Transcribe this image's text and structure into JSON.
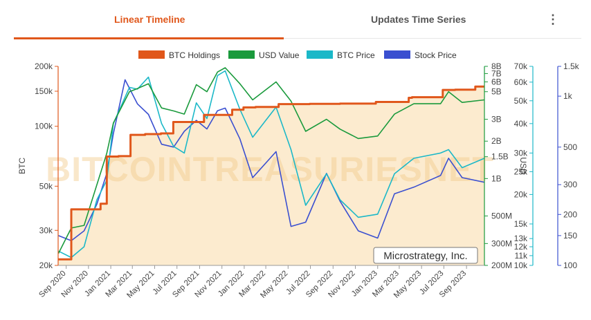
{
  "tabs": {
    "active": "Linear Timeline",
    "other": "Updates Time Series",
    "menu_icon": "kebab-menu-icon"
  },
  "colors": {
    "btc_holdings": "#e0571b",
    "usd_value": "#1a9a3c",
    "btc_price": "#1bb8c8",
    "stock_price": "#3a4fd0",
    "fill": "#fcebcf"
  },
  "watermark": "BITCOINTREASURIESNET",
  "company_label": "Microstrategy, Inc.",
  "chart_data": {
    "type": "line",
    "legend_position": "top",
    "x_ticks": [
      "Sep 2020",
      "Nov 2020",
      "Jan 2021",
      "Mar 2021",
      "May 2021",
      "Jul 2021",
      "Sep 2021",
      "Nov 2021",
      "Jan 2022",
      "Mar 2022",
      "May 2022",
      "Jul 2022",
      "Sep 2022",
      "Nov 2022",
      "Jan 2023",
      "Mar 2023",
      "May 2023",
      "Jul 2023",
      "Sep 2023"
    ],
    "axes": {
      "btc": {
        "label": "BTC",
        "scale": "log",
        "range": [
          20000,
          200000
        ],
        "ticks": [
          {
            "v": 20000,
            "t": "20k"
          },
          {
            "v": 30000,
            "t": "30k"
          },
          {
            "v": 50000,
            "t": "50k"
          },
          {
            "v": 100000,
            "t": "100k"
          },
          {
            "v": 150000,
            "t": "150k"
          },
          {
            "v": 200000,
            "t": "200k"
          }
        ]
      },
      "usd_value": {
        "label": "",
        "scale": "log",
        "range": [
          200000000,
          8000000000
        ],
        "ticks": [
          {
            "v": 200000000,
            "t": "200M"
          },
          {
            "v": 300000000,
            "t": "300M"
          },
          {
            "v": 500000000,
            "t": "500M"
          },
          {
            "v": 1000000000,
            "t": "1B"
          },
          {
            "v": 1500000000,
            "t": "1.5B"
          },
          {
            "v": 2000000000,
            "t": "2B"
          },
          {
            "v": 3000000000,
            "t": "3B"
          },
          {
            "v": 5000000000,
            "t": "5B"
          },
          {
            "v": 6000000000,
            "t": "6B"
          },
          {
            "v": 7000000000,
            "t": "7B"
          },
          {
            "v": 8000000000,
            "t": "8B"
          }
        ]
      },
      "btc_price": {
        "label": "USD",
        "scale": "log",
        "range": [
          10000,
          70000
        ],
        "ticks": [
          {
            "v": 10000,
            "t": "10k"
          },
          {
            "v": 11000,
            "t": "11k"
          },
          {
            "v": 12000,
            "t": "12k"
          },
          {
            "v": 13000,
            "t": "13k"
          },
          {
            "v": 15000,
            "t": "15k"
          },
          {
            "v": 20000,
            "t": "20k"
          },
          {
            "v": 25000,
            "t": "25k"
          },
          {
            "v": 30000,
            "t": "30k"
          },
          {
            "v": 40000,
            "t": "40k"
          },
          {
            "v": 50000,
            "t": "50k"
          },
          {
            "v": 60000,
            "t": "60k"
          },
          {
            "v": 70000,
            "t": "70k"
          }
        ]
      },
      "stock_price": {
        "label": "",
        "scale": "log",
        "range": [
          100,
          1500
        ],
        "ticks": [
          {
            "v": 100,
            "t": "100"
          },
          {
            "v": 150,
            "t": "150"
          },
          {
            "v": 200,
            "t": "200"
          },
          {
            "v": 300,
            "t": "300"
          },
          {
            "v": 500,
            "t": "500"
          },
          {
            "v": 1000,
            "t": "1k"
          },
          {
            "v": 1500,
            "t": "1.5k"
          }
        ]
      }
    },
    "x_range": [
      "2020-08-10",
      "2023-10-20"
    ],
    "series": [
      {
        "name": "BTC Holdings",
        "key": "btc",
        "points": [
          [
            "2020-08-11",
            21454
          ],
          [
            "2020-09-15",
            38250
          ],
          [
            "2020-12-04",
            40824
          ],
          [
            "2020-12-21",
            70470
          ],
          [
            "2021-01-22",
            70784
          ],
          [
            "2021-02-24",
            90531
          ],
          [
            "2021-04-05",
            91326
          ],
          [
            "2021-05-18",
            92079
          ],
          [
            "2021-06-21",
            105085
          ],
          [
            "2021-09-13",
            114042
          ],
          [
            "2021-11-29",
            121044
          ],
          [
            "2021-12-30",
            124391
          ],
          [
            "2022-02-01",
            125051
          ],
          [
            "2022-04-05",
            129218
          ],
          [
            "2022-06-29",
            129699
          ],
          [
            "2022-09-20",
            130000
          ],
          [
            "2022-12-27",
            132500
          ],
          [
            "2023-03-27",
            138955
          ],
          [
            "2023-04-05",
            140000
          ],
          [
            "2023-06-28",
            152333
          ],
          [
            "2023-08-01",
            152800
          ],
          [
            "2023-09-25",
            158245
          ],
          [
            "2023-10-20",
            158400
          ]
        ]
      },
      {
        "name": "USD Value",
        "key": "usd_value",
        "points": [
          [
            "2020-08-11",
            250000000
          ],
          [
            "2020-09-15",
            400000000
          ],
          [
            "2020-10-20",
            420000000
          ],
          [
            "2020-12-21",
            1600000000
          ],
          [
            "2021-01-08",
            2800000000
          ],
          [
            "2021-02-21",
            5000000000
          ],
          [
            "2021-03-15",
            5300000000
          ],
          [
            "2021-04-14",
            5800000000
          ],
          [
            "2021-05-20",
            3700000000
          ],
          [
            "2021-06-22",
            3500000000
          ],
          [
            "2021-07-21",
            3300000000
          ],
          [
            "2021-08-23",
            5700000000
          ],
          [
            "2021-09-21",
            5000000000
          ],
          [
            "2021-10-20",
            7200000000
          ],
          [
            "2021-11-10",
            7800000000
          ],
          [
            "2021-12-20",
            5800000000
          ],
          [
            "2022-01-24",
            4300000000
          ],
          [
            "2022-03-29",
            6000000000
          ],
          [
            "2022-05-09",
            4200000000
          ],
          [
            "2022-06-18",
            2400000000
          ],
          [
            "2022-08-14",
            3000000000
          ],
          [
            "2022-09-20",
            2500000000
          ],
          [
            "2022-11-09",
            2100000000
          ],
          [
            "2023-01-01",
            2200000000
          ],
          [
            "2023-02-16",
            3300000000
          ],
          [
            "2023-04-10",
            4000000000
          ],
          [
            "2023-06-22",
            4000000000
          ],
          [
            "2023-07-14",
            5000000000
          ],
          [
            "2023-08-20",
            4100000000
          ],
          [
            "2023-10-20",
            4300000000
          ]
        ]
      },
      {
        "name": "BTC Price",
        "key": "btc_price",
        "points": [
          [
            "2020-08-11",
            11500
          ],
          [
            "2020-09-15",
            10800
          ],
          [
            "2020-10-20",
            12000
          ],
          [
            "2020-11-24",
            19000
          ],
          [
            "2020-12-21",
            23000
          ],
          [
            "2021-01-08",
            40000
          ],
          [
            "2021-02-21",
            57000
          ],
          [
            "2021-03-15",
            56000
          ],
          [
            "2021-04-14",
            63000
          ],
          [
            "2021-05-20",
            40000
          ],
          [
            "2021-06-22",
            32000
          ],
          [
            "2021-07-21",
            30000
          ],
          [
            "2021-08-23",
            49000
          ],
          [
            "2021-09-21",
            42000
          ],
          [
            "2021-10-20",
            64000
          ],
          [
            "2021-11-10",
            67000
          ],
          [
            "2021-12-20",
            46000
          ],
          [
            "2022-01-24",
            35000
          ],
          [
            "2022-03-29",
            47000
          ],
          [
            "2022-05-09",
            31000
          ],
          [
            "2022-06-18",
            18000
          ],
          [
            "2022-08-14",
            24500
          ],
          [
            "2022-09-20",
            19000
          ],
          [
            "2022-11-09",
            16000
          ],
          [
            "2023-01-01",
            16500
          ],
          [
            "2023-02-16",
            24500
          ],
          [
            "2023-04-10",
            28500
          ],
          [
            "2023-06-22",
            30000
          ],
          [
            "2023-07-14",
            31000
          ],
          [
            "2023-08-20",
            26000
          ],
          [
            "2023-10-20",
            28500
          ]
        ]
      },
      {
        "name": "Stock Price",
        "key": "stock_price",
        "points": [
          [
            "2020-08-11",
            150
          ],
          [
            "2020-09-15",
            140
          ],
          [
            "2020-10-20",
            160
          ],
          [
            "2020-11-24",
            230
          ],
          [
            "2020-12-21",
            350
          ],
          [
            "2021-01-08",
            600
          ],
          [
            "2021-02-09",
            1250
          ],
          [
            "2021-03-15",
            900
          ],
          [
            "2021-04-14",
            780
          ],
          [
            "2021-05-20",
            520
          ],
          [
            "2021-06-22",
            500
          ],
          [
            "2021-07-21",
            620
          ],
          [
            "2021-08-23",
            720
          ],
          [
            "2021-09-21",
            640
          ],
          [
            "2021-10-20",
            820
          ],
          [
            "2021-11-10",
            850
          ],
          [
            "2021-12-20",
            560
          ],
          [
            "2022-01-24",
            330
          ],
          [
            "2022-03-29",
            470
          ],
          [
            "2022-05-09",
            170
          ],
          [
            "2022-06-18",
            180
          ],
          [
            "2022-08-14",
            350
          ],
          [
            "2022-09-20",
            240
          ],
          [
            "2022-11-09",
            160
          ],
          [
            "2023-01-01",
            145
          ],
          [
            "2023-02-16",
            265
          ],
          [
            "2023-04-10",
            290
          ],
          [
            "2023-06-22",
            340
          ],
          [
            "2023-07-14",
            430
          ],
          [
            "2023-08-20",
            330
          ],
          [
            "2023-10-20",
            310
          ]
        ]
      }
    ]
  }
}
